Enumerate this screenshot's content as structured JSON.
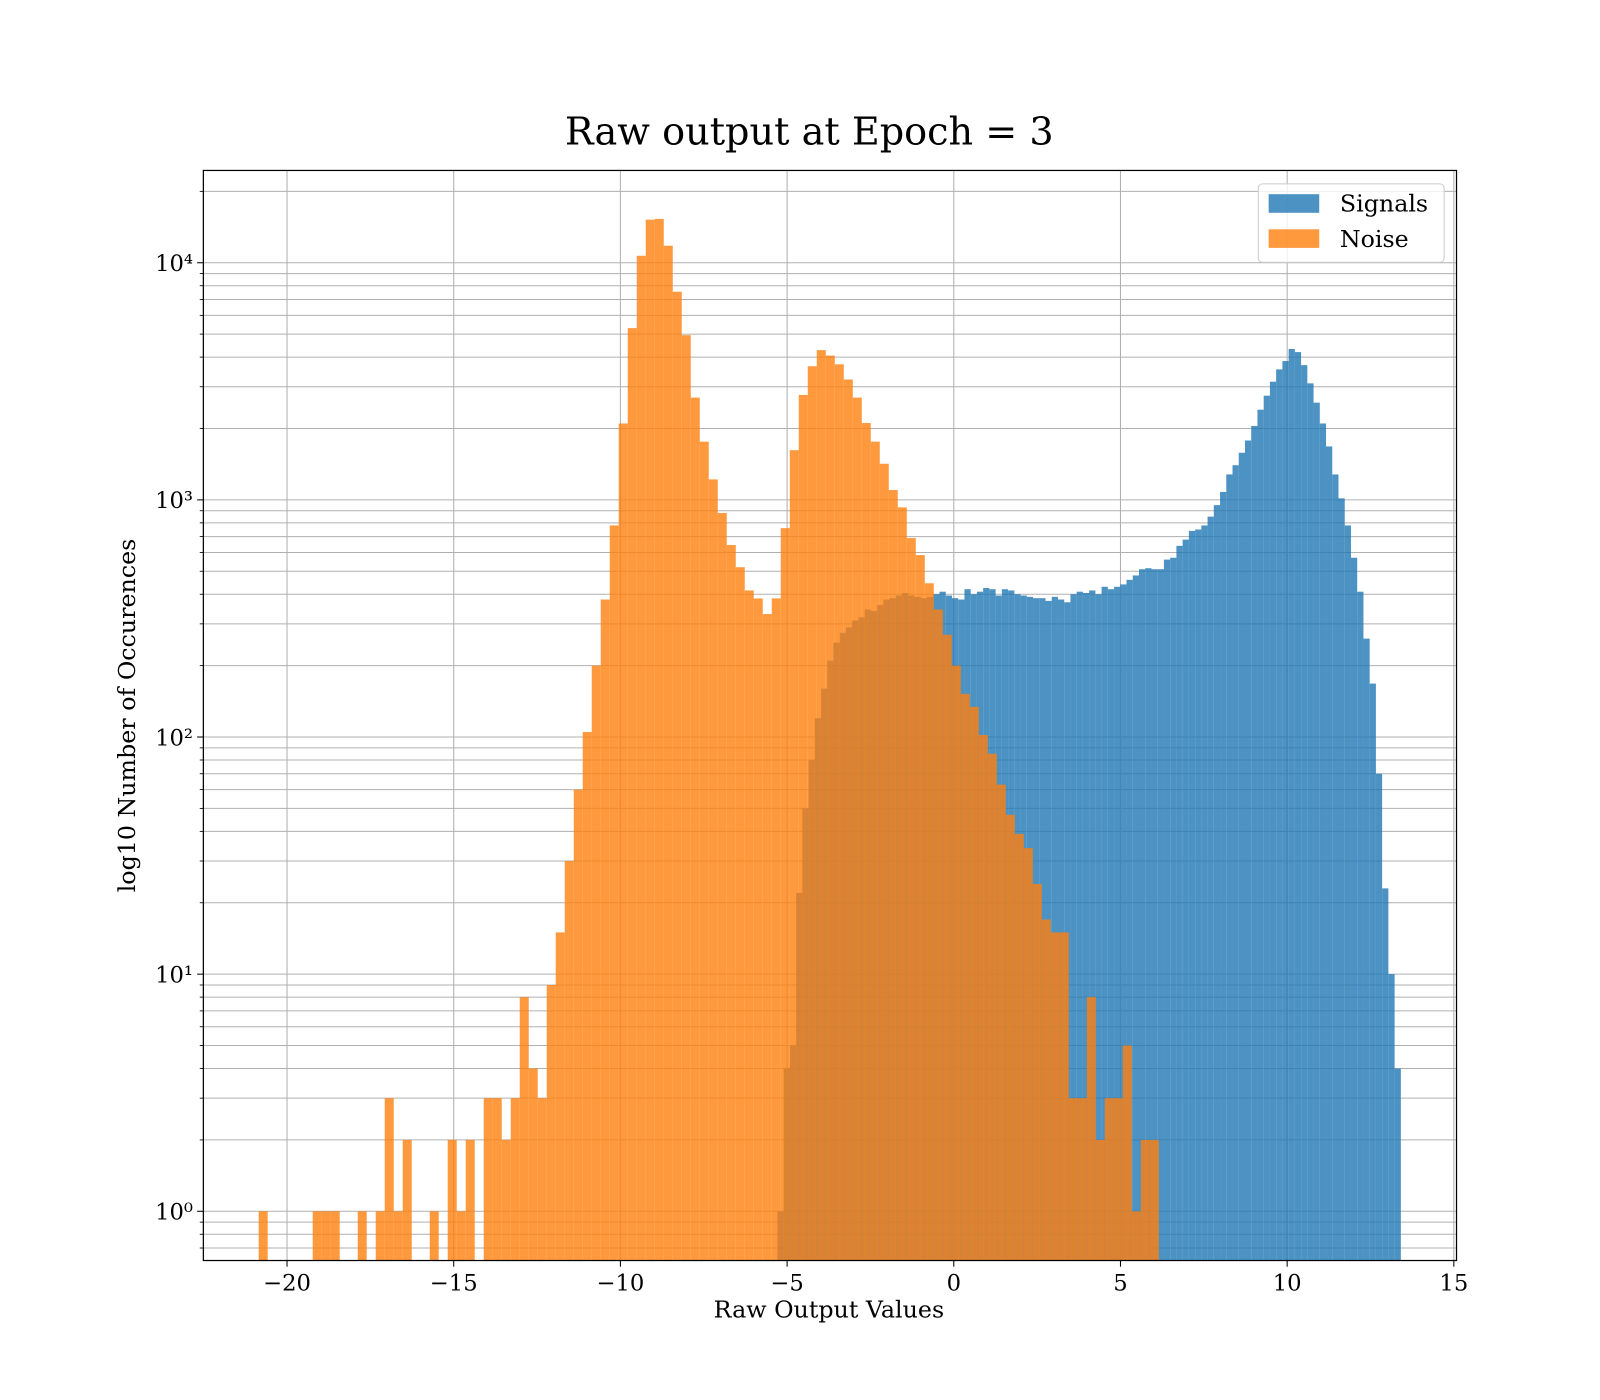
{
  "chart_data": {
    "type": "histogram",
    "title": "Raw output at Epoch = 3",
    "xlabel": "Raw Output Values",
    "ylabel": "log10 Number of Occurences",
    "xlim": [
      -22.51,
      15.08
    ],
    "ylim": [
      0.62,
      24500
    ],
    "ylog": true,
    "grid": true,
    "legend": "upper right",
    "xticks": [
      {
        "value": -20,
        "label": "−20"
      },
      {
        "value": -15,
        "label": "−15"
      },
      {
        "value": -10,
        "label": "−10"
      },
      {
        "value": -5,
        "label": "−5"
      },
      0,
      5,
      10,
      15
    ],
    "yticks": [
      {
        "value": 1,
        "label": "10⁰"
      },
      {
        "value": 10,
        "label": "10¹"
      },
      {
        "value": 100,
        "label": "10²"
      },
      {
        "value": 1000,
        "label": "10³"
      },
      {
        "value": 10000,
        "label": "10⁴"
      }
    ],
    "yminorticks": [
      0.7,
      0.8,
      0.9,
      2,
      3,
      4,
      5,
      6,
      7,
      8,
      9,
      20,
      30,
      40,
      50,
      60,
      70,
      80,
      90,
      200,
      300,
      400,
      500,
      600,
      700,
      800,
      900,
      2000,
      3000,
      4000,
      5000,
      6000,
      7000,
      8000,
      9000,
      20000
    ],
    "series": [
      {
        "name": "Signals",
        "color": "#1f77b4",
        "opacity": 0.8,
        "bins": [
          -5.29,
          -5.103,
          -4.916,
          -4.729,
          -4.542,
          -4.355,
          -4.168,
          -3.981,
          -3.794,
          -3.607,
          -3.42,
          -3.233,
          -3.046,
          -2.859,
          -2.672,
          -2.485,
          -2.298,
          -2.111,
          -1.924,
          -1.737,
          -1.55,
          -1.363,
          -1.176,
          -0.989,
          -0.802,
          -0.615,
          -0.428,
          -0.241,
          -0.054,
          0.133,
          0.32,
          0.507,
          0.694,
          0.881,
          1.068,
          1.255,
          1.442,
          1.629,
          1.816,
          2.003,
          2.19,
          2.377,
          2.564,
          2.751,
          2.938,
          3.125,
          3.312,
          3.499,
          3.686,
          3.873,
          4.06,
          4.247,
          4.434,
          4.621,
          4.808,
          4.995,
          5.182,
          5.369,
          5.556,
          5.743,
          5.93,
          6.117,
          6.304,
          6.491,
          6.678,
          6.865,
          7.052,
          7.239,
          7.426,
          7.613,
          7.8,
          7.987,
          8.174,
          8.361,
          8.548,
          8.735,
          8.922,
          9.109,
          9.296,
          9.483,
          9.67,
          9.857,
          10.044,
          10.231,
          10.418,
          10.605,
          10.792,
          10.979,
          11.166,
          11.353,
          11.54,
          11.727,
          11.914,
          12.101,
          12.288,
          12.475,
          12.662,
          12.849,
          13.036,
          13.223,
          13.41
        ],
        "values": [
          1,
          4,
          5,
          22,
          50,
          80,
          120,
          160,
          210,
          250,
          275,
          290,
          310,
          320,
          345,
          340,
          360,
          380,
          385,
          395,
          405,
          395,
          390,
          385,
          390,
          400,
          410,
          395,
          385,
          380,
          420,
          400,
          410,
          425,
          420,
          395,
          420,
          415,
          400,
          395,
          390,
          385,
          385,
          375,
          390,
          380,
          370,
          400,
          410,
          405,
          415,
          400,
          430,
          420,
          430,
          440,
          460,
          480,
          510,
          515,
          510,
          510,
          560,
          570,
          640,
          680,
          740,
          750,
          780,
          850,
          950,
          1080,
          1280,
          1400,
          1580,
          1780,
          2050,
          2400,
          2750,
          3150,
          3550,
          3850,
          4330,
          4200,
          3700,
          3100,
          2570,
          2100,
          1680,
          1280,
          1015,
          780,
          570,
          410,
          260,
          168,
          70,
          23,
          10,
          4
        ]
      },
      {
        "name": "Noise",
        "color": "#ff7f0e",
        "opacity": 0.8,
        "bins": [
          -20.85,
          -20.58,
          -20.31,
          -20.04,
          -19.77,
          -19.5,
          -19.23,
          -18.96,
          -18.69,
          -18.42,
          -18.15,
          -17.88,
          -17.61,
          -17.34,
          -17.07,
          -16.8,
          -16.53,
          -16.26,
          -15.99,
          -15.72,
          -15.45,
          -15.18,
          -14.91,
          -14.64,
          -14.37,
          -14.1,
          -13.83,
          -13.56,
          -13.29,
          -13.02,
          -12.75,
          -12.48,
          -12.21,
          -11.94,
          -11.67,
          -11.4,
          -11.13,
          -10.86,
          -10.59,
          -10.32,
          -10.05,
          -9.78,
          -9.51,
          -9.24,
          -8.97,
          -8.7,
          -8.43,
          -8.16,
          -7.89,
          -7.62,
          -7.35,
          -7.08,
          -6.81,
          -6.54,
          -6.27,
          -6.0,
          -5.73,
          -5.46,
          -5.19,
          -4.92,
          -4.65,
          -4.38,
          -4.11,
          -3.84,
          -3.57,
          -3.3,
          -3.03,
          -2.76,
          -2.49,
          -2.22,
          -1.95,
          -1.68,
          -1.41,
          -1.14,
          -0.87,
          -0.6,
          -0.33,
          -0.06,
          0.21,
          0.48,
          0.75,
          1.02,
          1.29,
          1.56,
          1.83,
          2.1,
          2.37,
          2.64,
          2.91,
          3.18,
          3.45,
          3.72,
          3.99,
          4.26,
          4.53,
          4.8,
          5.07,
          5.34,
          5.61,
          5.88,
          6.15
        ],
        "values": [
          1,
          0,
          0,
          0,
          0,
          0,
          1,
          1,
          1,
          0,
          0,
          1,
          0,
          1,
          3,
          1,
          2,
          0,
          0,
          1,
          0,
          2,
          1,
          2,
          0,
          3,
          3,
          2,
          3,
          8,
          4,
          3,
          9,
          15,
          30,
          60,
          105,
          200,
          380,
          780,
          2100,
          5300,
          10700,
          15200,
          15300,
          11800,
          7550,
          4950,
          2700,
          1760,
          1220,
          880,
          645,
          520,
          415,
          384,
          330,
          384,
          760,
          1620,
          2770,
          3660,
          4280,
          4060,
          3730,
          3220,
          2700,
          2110,
          1760,
          1420,
          1100,
          930,
          690,
          585,
          445,
          345,
          270,
          200,
          152,
          134,
          102,
          85,
          63,
          47,
          39,
          34,
          24,
          17,
          15,
          15,
          3,
          3,
          8,
          2,
          3,
          3,
          5,
          1,
          2,
          2
        ]
      }
    ]
  }
}
